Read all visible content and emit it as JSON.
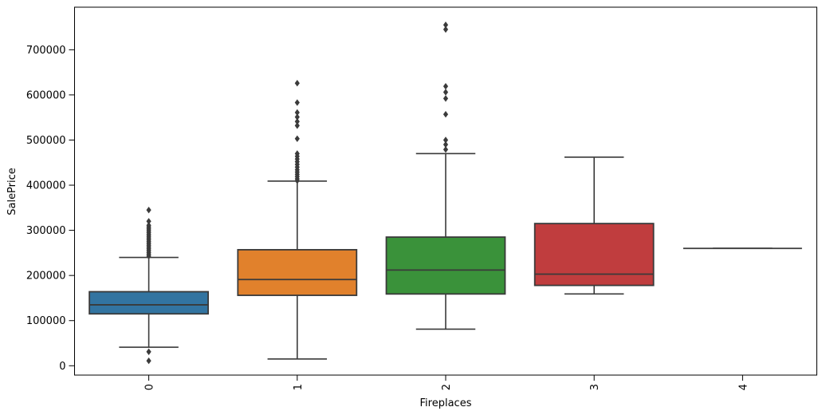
{
  "chart_data": {
    "type": "boxplot",
    "title": "",
    "xlabel": "Fireplaces",
    "ylabel": "SalePrice",
    "categories": [
      "0",
      "1",
      "2",
      "3",
      "4"
    ],
    "x_tick_labels": [
      "0",
      "1",
      "2",
      "3",
      "4"
    ],
    "x_tick_rotation": 90,
    "ytick_values": [
      0,
      100000,
      200000,
      300000,
      400000,
      500000,
      600000,
      700000
    ],
    "ytick_labels": [
      "0",
      "100000",
      "200000",
      "300000",
      "400000",
      "500000",
      "600000",
      "700000"
    ],
    "ylim": [
      -20700,
      794300
    ],
    "grid": false,
    "legend": null,
    "edge_color": "#3a3a3a",
    "flier_color": "#3b3b3b",
    "spine_color": "#000000",
    "series": [
      {
        "category": "0",
        "color": "#3274a1",
        "whislo": 41000,
        "q1": 115000,
        "med": 135000,
        "q3": 164000,
        "whishi": 240000,
        "outliers_high": [
          345000,
          320000,
          311000,
          307000,
          303000,
          299000,
          295000,
          291000,
          287000,
          283000,
          279000,
          275000,
          271000,
          267000,
          263000,
          259000,
          255000,
          251000,
          247000,
          243000
        ],
        "outliers_low": [
          31000,
          11000
        ]
      },
      {
        "category": "1",
        "color": "#e1812c",
        "whislo": 15000,
        "q1": 156000,
        "med": 191000,
        "q3": 257000,
        "whishi": 409000,
        "outliers_high": [
          626000,
          583000,
          561000,
          551000,
          541000,
          532000,
          503000,
          470000,
          464000,
          458000,
          452000,
          446000,
          440000,
          434000,
          429000,
          424000,
          419000,
          414000,
          410000
        ],
        "outliers_low": []
      },
      {
        "category": "2",
        "color": "#3a923a",
        "whislo": 81000,
        "q1": 159000,
        "med": 212000,
        "q3": 285000,
        "whishi": 470000,
        "outliers_high": [
          755000,
          745000,
          619000,
          606000,
          592000,
          557000,
          500000,
          490000,
          479000
        ],
        "outliers_low": []
      },
      {
        "category": "3",
        "color": "#c03d3e",
        "whislo": 159000,
        "q1": 178000,
        "med": 203000,
        "q3": 315000,
        "whishi": 462000,
        "outliers_high": [],
        "outliers_low": []
      },
      {
        "category": "4",
        "color": "#8464a8",
        "whislo": 260000,
        "q1": 260000,
        "med": 260000,
        "q3": 260000,
        "whishi": 260000,
        "outliers_high": [],
        "outliers_low": []
      }
    ]
  }
}
